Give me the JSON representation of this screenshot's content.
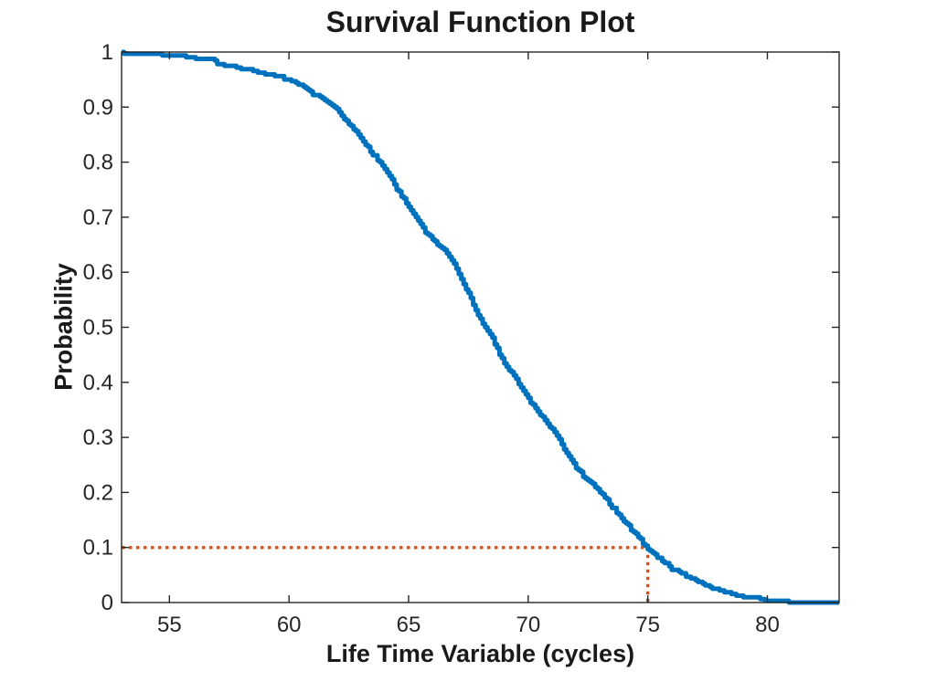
{
  "chart_data": {
    "type": "line",
    "subtype": "empirical-survival-step",
    "title": "Survival Function Plot",
    "xlabel": "Life Time Variable (cycles)",
    "ylabel": "Probability",
    "xlim": [
      53,
      83
    ],
    "ylim": [
      0,
      1
    ],
    "xticks": [
      55,
      60,
      65,
      70,
      75,
      80
    ],
    "xtick_labels": [
      "55",
      "60",
      "65",
      "70",
      "75",
      "80"
    ],
    "yticks": [
      0,
      0.1,
      0.2,
      0.3,
      0.4,
      0.5,
      0.6,
      0.7,
      0.8,
      0.9,
      1
    ],
    "ytick_labels": [
      "0",
      "0.1",
      "0.2",
      "0.3",
      "0.4",
      "0.5",
      "0.6",
      "0.7",
      "0.8",
      "0.9",
      "1"
    ],
    "grid": false,
    "legend": null,
    "axis_color": "#262626",
    "background": "#ffffff",
    "series": [
      {
        "name": "survival-function",
        "color": "#0072BD",
        "line_width": 5,
        "points": [
          [
            53.0,
            1.0
          ],
          [
            54.0,
            0.997
          ],
          [
            55.0,
            0.995
          ],
          [
            55.5,
            0.993
          ],
          [
            56.0,
            0.991
          ],
          [
            56.8,
            0.989
          ],
          [
            57.0,
            0.98
          ],
          [
            57.5,
            0.976
          ],
          [
            58.0,
            0.971
          ],
          [
            58.5,
            0.966
          ],
          [
            59.0,
            0.962
          ],
          [
            59.5,
            0.957
          ],
          [
            60.0,
            0.95
          ],
          [
            60.5,
            0.94
          ],
          [
            61.0,
            0.925
          ],
          [
            61.5,
            0.913
          ],
          [
            62.0,
            0.895
          ],
          [
            62.5,
            0.868
          ],
          [
            63.0,
            0.845
          ],
          [
            63.5,
            0.815
          ],
          [
            64.0,
            0.79
          ],
          [
            64.5,
            0.752
          ],
          [
            65.0,
            0.72
          ],
          [
            65.5,
            0.685
          ],
          [
            66.0,
            0.66
          ],
          [
            66.5,
            0.64
          ],
          [
            67.0,
            0.607
          ],
          [
            67.5,
            0.56
          ],
          [
            68.0,
            0.515
          ],
          [
            68.5,
            0.48
          ],
          [
            69.0,
            0.435
          ],
          [
            69.5,
            0.405
          ],
          [
            70.0,
            0.372
          ],
          [
            70.5,
            0.34
          ],
          [
            71.0,
            0.315
          ],
          [
            71.5,
            0.28
          ],
          [
            72.0,
            0.245
          ],
          [
            72.5,
            0.222
          ],
          [
            73.0,
            0.203
          ],
          [
            73.5,
            0.175
          ],
          [
            74.0,
            0.148
          ],
          [
            74.5,
            0.125
          ],
          [
            75.0,
            0.098
          ],
          [
            75.5,
            0.08
          ],
          [
            76.0,
            0.062
          ],
          [
            76.5,
            0.05
          ],
          [
            77.0,
            0.04
          ],
          [
            77.5,
            0.03
          ],
          [
            78.0,
            0.022
          ],
          [
            78.5,
            0.016
          ],
          [
            79.0,
            0.011
          ],
          [
            79.5,
            0.008
          ],
          [
            80.0,
            0.005
          ],
          [
            80.5,
            0.003
          ],
          [
            81.0,
            0.001
          ],
          [
            81.3,
            0.0
          ],
          [
            83.0,
            0.0
          ]
        ]
      }
    ],
    "reference_lines": {
      "color": "#D95319",
      "style": "dotted",
      "line_width": 3.5,
      "horizontal": {
        "probability": 0.1,
        "from_x": 53,
        "to_x": 75
      },
      "vertical": {
        "x": 75,
        "from_probability": 0.1,
        "to_probability": 0
      }
    }
  }
}
